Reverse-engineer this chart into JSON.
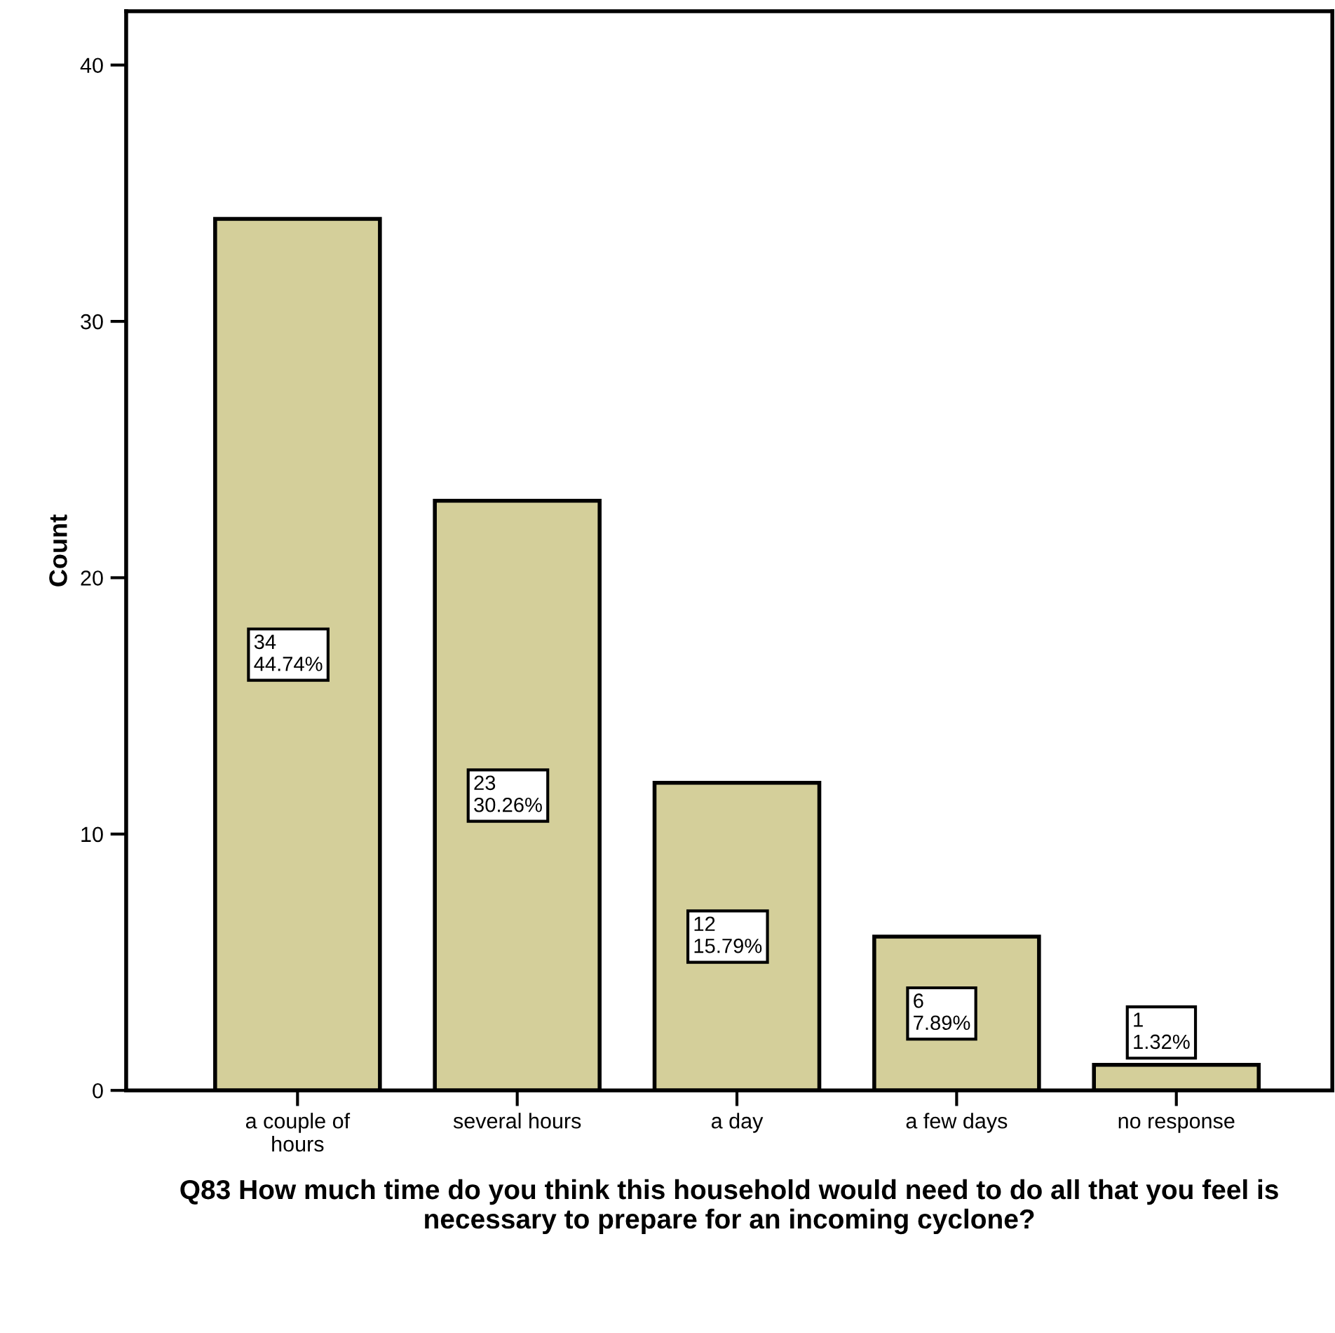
{
  "chart_data": {
    "type": "bar",
    "xlabel": "Q83 How much time do you think this household would need to do all that you feel is necessary to prepare for an incoming cyclone?",
    "ylabel": "Count",
    "categories": [
      "a couple of\nhours",
      "several hours",
      "a day",
      "a few days",
      "no response"
    ],
    "values": [
      34,
      23,
      12,
      6,
      1
    ],
    "value_labels": [
      "34\n44.74%",
      "23\n30.26%",
      "12\n15.79%",
      "6\n7.89%",
      "1\n1.32%"
    ],
    "color": "#d4cf9a",
    "ylim": [
      0,
      42.1
    ],
    "yticks": [
      0,
      10,
      20,
      30,
      40
    ],
    "grid": false,
    "legend": false
  }
}
